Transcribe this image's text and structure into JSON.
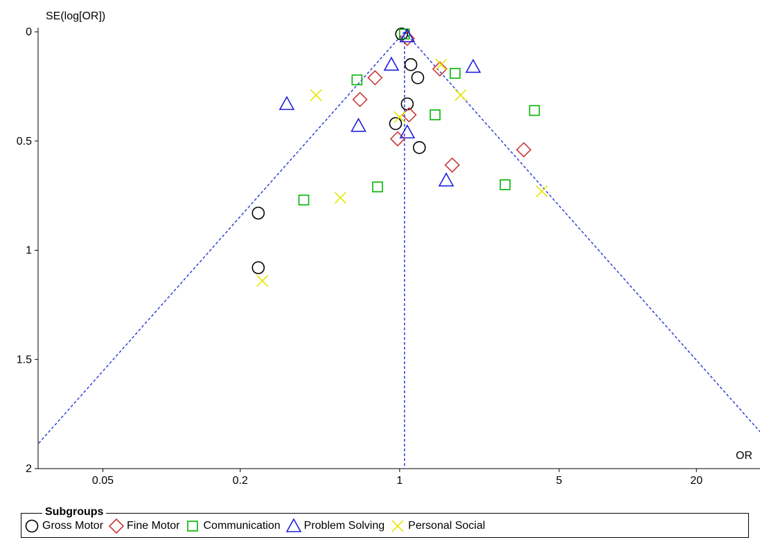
{
  "chart_data": {
    "type": "scatter",
    "title": "",
    "xlabel": "OR",
    "ylabel": "SE(log[OR])",
    "x_scale": "log",
    "y_inverted": true,
    "x_ticks": [
      0.05,
      0.2,
      1,
      5,
      20
    ],
    "x_tick_labels": [
      "0.05",
      "0.2",
      "1",
      "5",
      "20"
    ],
    "y_ticks": [
      0,
      0.5,
      1,
      1.5,
      2
    ],
    "y_tick_labels": [
      "0",
      "0.5",
      "1",
      "1.5",
      "2"
    ],
    "ylim": [
      0,
      2
    ],
    "xlim": [
      0.026,
      38
    ],
    "pooled_or": 1.05,
    "legend_title": "Subgroups",
    "legend_position": "bottom",
    "series": [
      {
        "name": "Gross Motor",
        "marker": "circle",
        "color": "#000000",
        "points": [
          [
            1.02,
            0.01
          ],
          [
            1.12,
            0.15
          ],
          [
            1.2,
            0.21
          ],
          [
            1.08,
            0.33
          ],
          [
            0.96,
            0.42
          ],
          [
            1.22,
            0.53
          ],
          [
            0.24,
            0.83
          ],
          [
            0.24,
            1.08
          ]
        ]
      },
      {
        "name": "Fine Motor",
        "marker": "diamond",
        "color": "#c83737",
        "points": [
          [
            1.08,
            0.03
          ],
          [
            1.5,
            0.17
          ],
          [
            0.78,
            0.21
          ],
          [
            0.67,
            0.31
          ],
          [
            1.1,
            0.38
          ],
          [
            0.98,
            0.49
          ],
          [
            3.5,
            0.54
          ],
          [
            1.7,
            0.61
          ]
        ]
      },
      {
        "name": "Communication",
        "marker": "square",
        "color": "#00b400",
        "points": [
          [
            1.05,
            0.01
          ],
          [
            1.75,
            0.19
          ],
          [
            0.65,
            0.22
          ],
          [
            1.43,
            0.38
          ],
          [
            3.9,
            0.36
          ],
          [
            0.8,
            0.71
          ],
          [
            2.9,
            0.7
          ],
          [
            0.38,
            0.77
          ]
        ]
      },
      {
        "name": "Problem Solving",
        "marker": "triangle",
        "color": "#1e1edc",
        "points": [
          [
            1.08,
            0.02
          ],
          [
            0.92,
            0.15
          ],
          [
            2.1,
            0.16
          ],
          [
            0.32,
            0.33
          ],
          [
            0.66,
            0.43
          ],
          [
            1.08,
            0.46
          ],
          [
            1.6,
            0.68
          ]
        ]
      },
      {
        "name": "Personal Social",
        "marker": "x",
        "color": "#e6e600",
        "points": [
          [
            1.52,
            0.15
          ],
          [
            0.43,
            0.29
          ],
          [
            1.85,
            0.29
          ],
          [
            1.0,
            0.39
          ],
          [
            0.55,
            0.76
          ],
          [
            4.2,
            0.73
          ],
          [
            0.25,
            1.14
          ]
        ]
      }
    ]
  }
}
